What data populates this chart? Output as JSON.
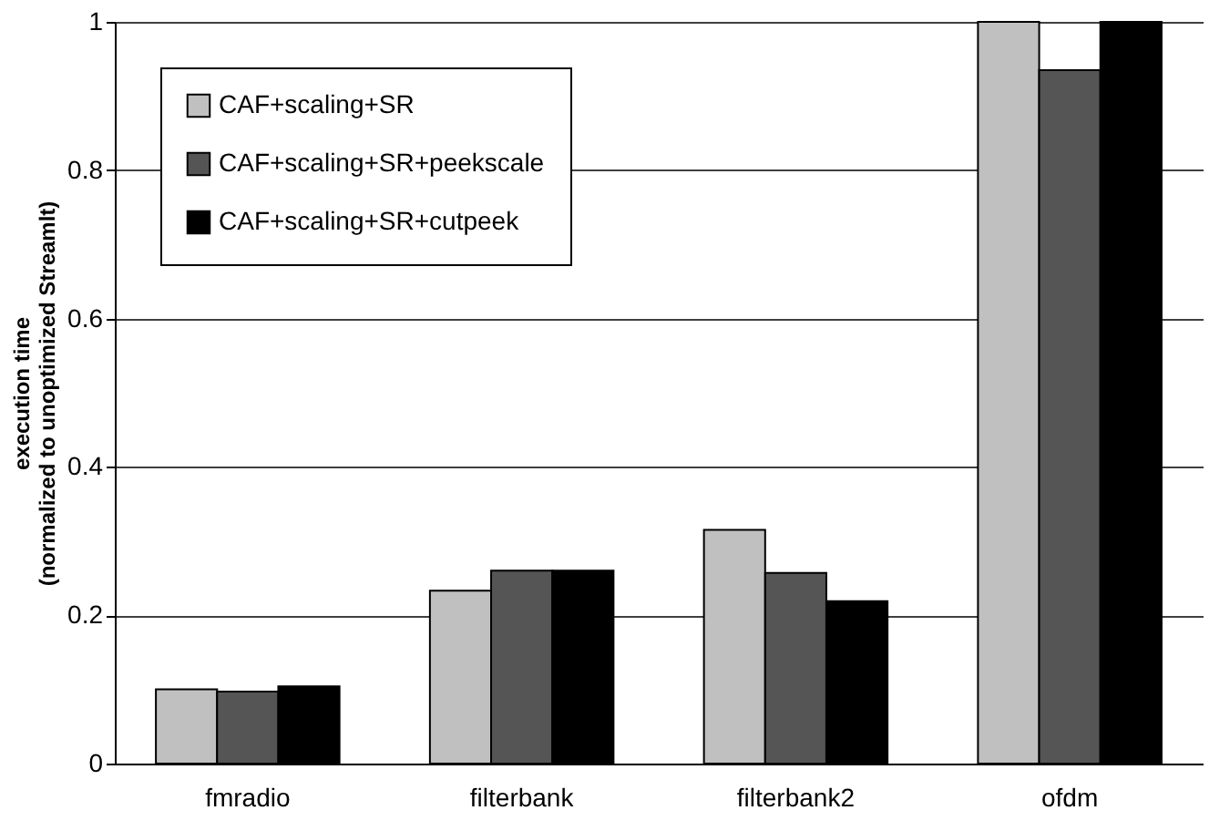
{
  "chart_data": {
    "type": "bar",
    "ylabel": "execution time\n(normalized to unoptimized Streamlt)",
    "categories": [
      "fmradio",
      "filterbank",
      "filterbank2",
      "ofdm"
    ],
    "series": [
      {
        "name": "CAF+scaling+SR",
        "color": "#c0c0c0",
        "values": [
          0.1,
          0.233,
          0.315,
          1.0
        ]
      },
      {
        "name": "CAF+scaling+SR+peekscale",
        "color": "#555555",
        "values": [
          0.097,
          0.26,
          0.257,
          0.935
        ]
      },
      {
        "name": "CAF+scaling+SR+cutpeek",
        "color": "#000000",
        "values": [
          0.104,
          0.26,
          0.219,
          1.0
        ]
      }
    ],
    "ylim": [
      0,
      1
    ],
    "yticks": [
      0,
      0.2,
      0.4,
      0.6,
      0.8,
      1
    ],
    "grid": "y",
    "legend": "top left"
  }
}
